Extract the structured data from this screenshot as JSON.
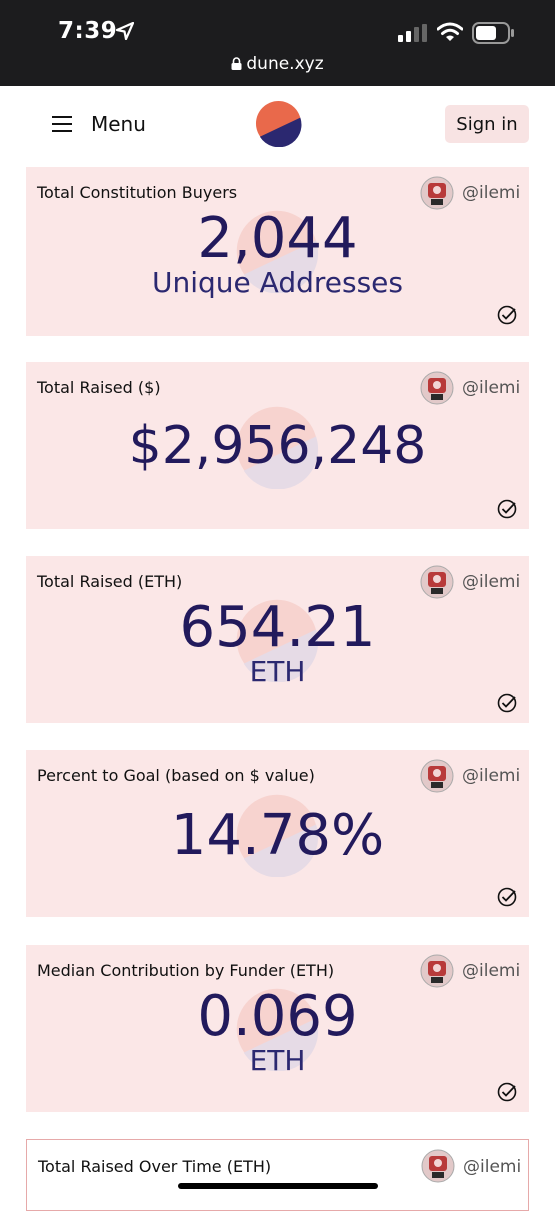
{
  "status_bar": {
    "time": "7:39",
    "url": "dune.xyz"
  },
  "nav": {
    "menu_label": "Menu",
    "sign_in_label": "Sign in"
  },
  "colors": {
    "accent_orange": "#e9694b",
    "accent_navy": "#2b2870",
    "card_bg": "#fbe7e7",
    "value_color": "#221a5c"
  },
  "cards": [
    {
      "title": "Total Constitution Buyers",
      "author": "@ilemi",
      "value": "2,044",
      "unit": "Unique Addresses"
    },
    {
      "title": "Total Raised ($)",
      "author": "@ilemi",
      "value": "$2,956,248"
    },
    {
      "title": "Total Raised (ETH)",
      "author": "@ilemi",
      "value": "654.21",
      "unit": "ETH"
    },
    {
      "title": "Percent to Goal (based on $ value)",
      "author": "@ilemi",
      "value": "14.78%"
    },
    {
      "title": "Median Contribution by Funder (ETH)",
      "author": "@ilemi",
      "value": "0.069",
      "unit": "ETH"
    },
    {
      "title": "Total Raised Over Time (ETH)",
      "author": "@ilemi"
    }
  ]
}
